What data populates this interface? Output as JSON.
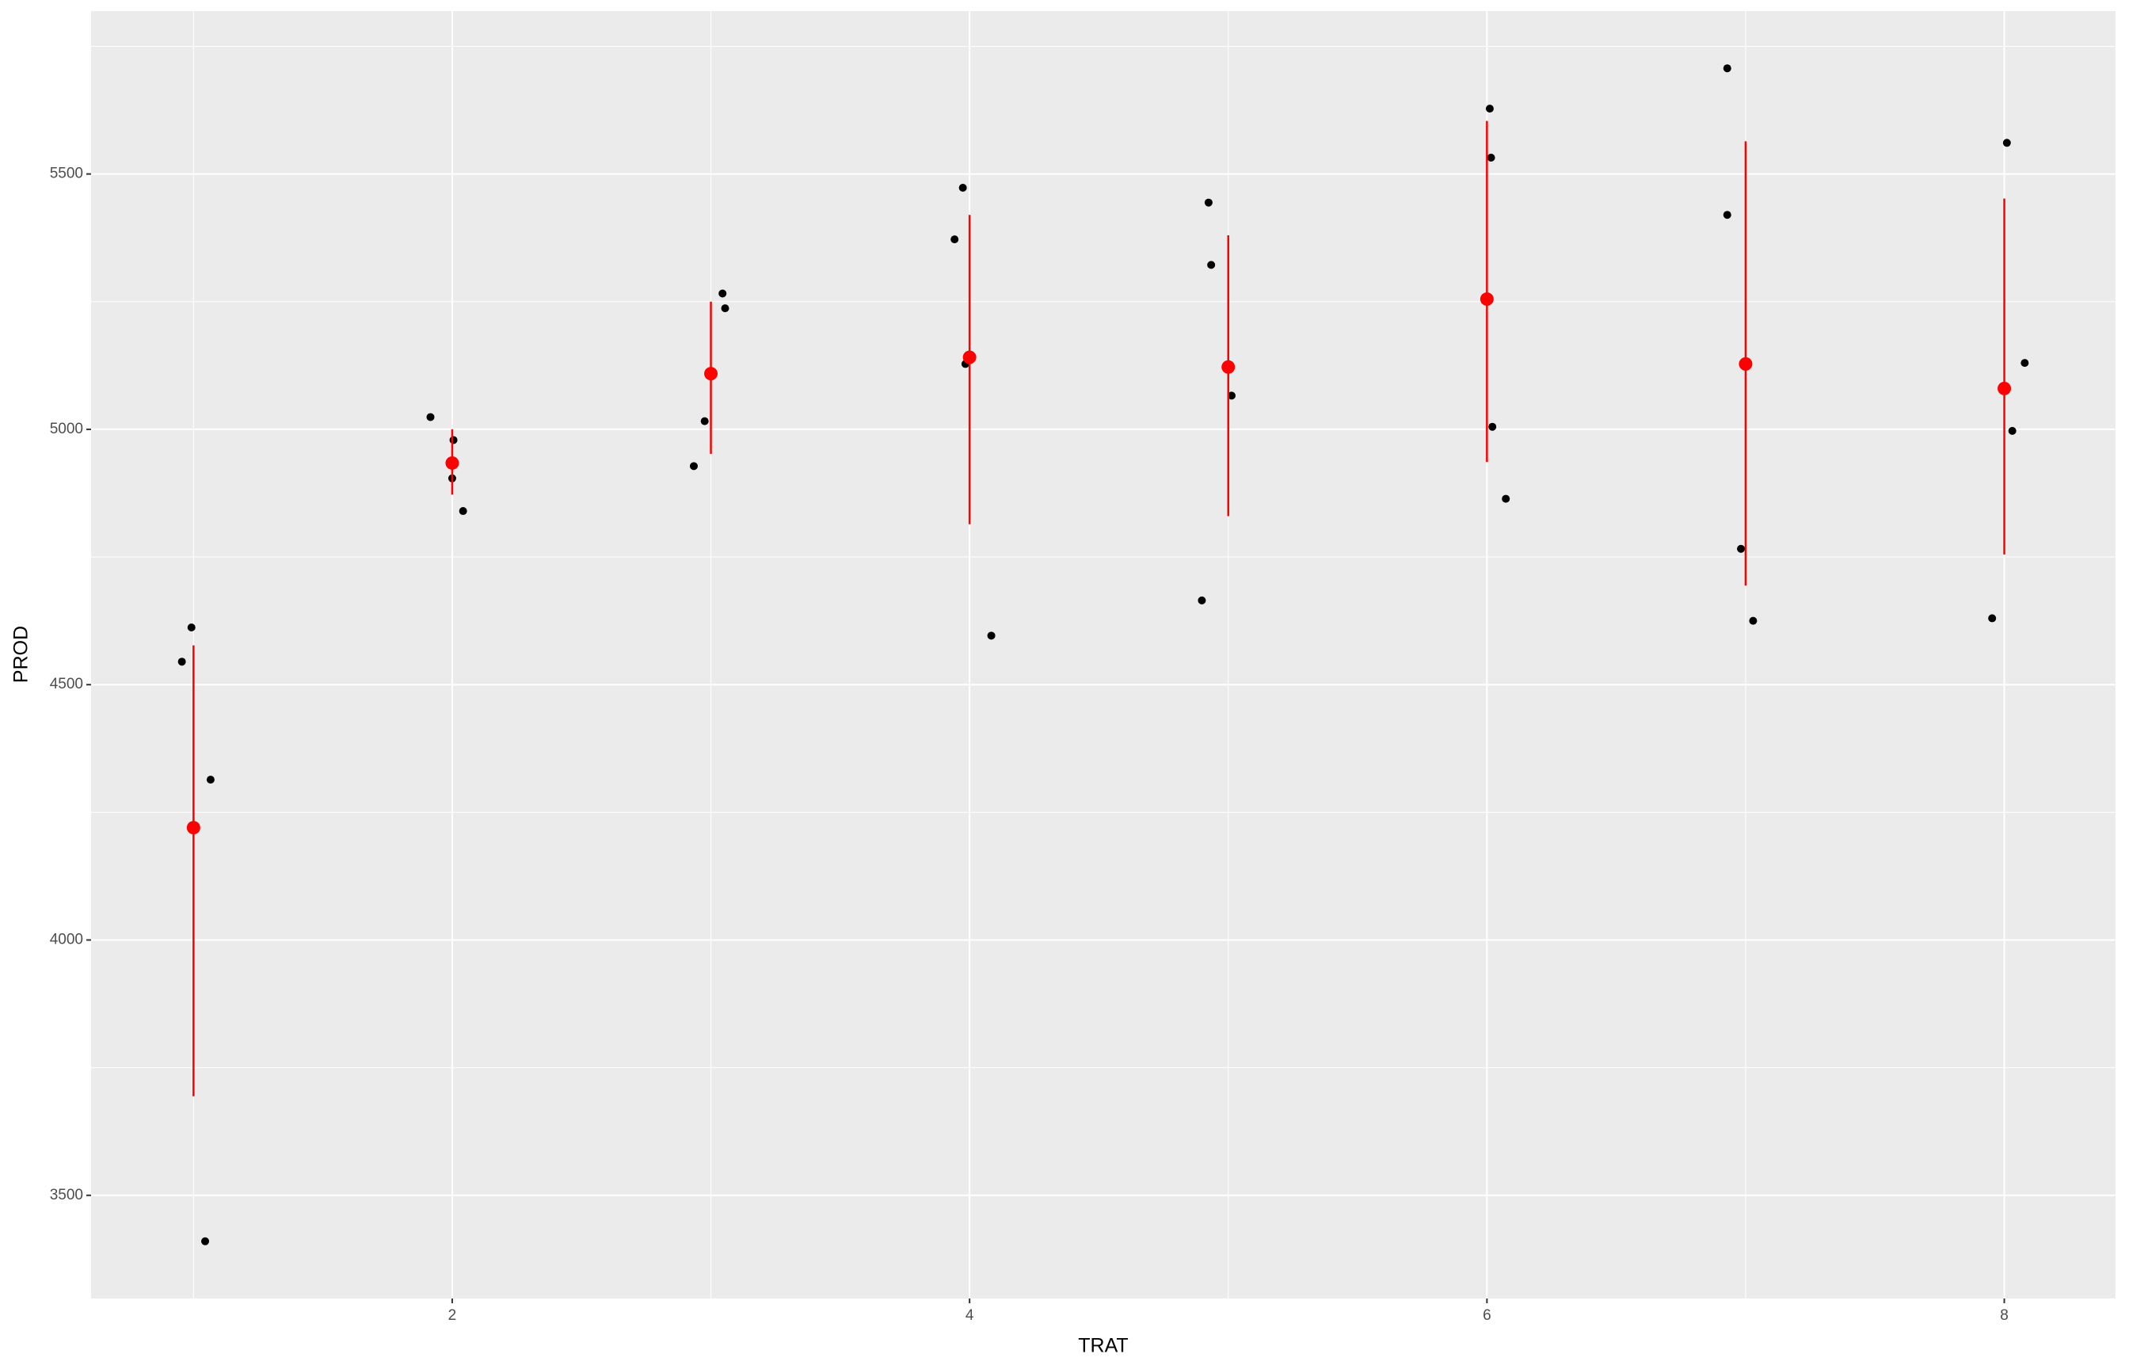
{
  "chart_data": {
    "type": "scatter",
    "x_label": "TRAT",
    "y_label": "PROD",
    "xlim": [
      0.604,
      8.43
    ],
    "ylim": [
      3298,
      5819
    ],
    "xticks": [
      2,
      4,
      6,
      8
    ],
    "yticks": [
      3500,
      4000,
      4500,
      5000,
      5500
    ],
    "xminor": [
      1,
      3,
      5,
      7
    ],
    "yminor": [
      3750,
      4250,
      4750,
      5250,
      5750
    ],
    "grid": true,
    "background": "#ebebeb",
    "series": [
      {
        "color": "#000000",
        "x": [
          0.955,
          0.992,
          1.066,
          1.045,
          1.916,
          2.005,
          2.0,
          2.042,
          2.934,
          2.976,
          3.045,
          3.055,
          3.942,
          3.974,
          3.984,
          4.084,
          4.898,
          4.924,
          4.934,
          5.013,
          6.011,
          6.016,
          6.021,
          6.073,
          6.929,
          6.929,
          6.982,
          7.029,
          7.953,
          8.01,
          8.031,
          8.079
        ],
        "values": [
          4545,
          4612,
          4314,
          3410,
          5024,
          4979,
          4904,
          4840,
          4928,
          5016,
          5266,
          5237,
          5372,
          5473,
          5128,
          4596,
          4665,
          5444,
          5322,
          5066,
          5628,
          5532,
          5005,
          4864,
          5707,
          5420,
          4766,
          4625,
          4630,
          5561,
          4997,
          5130
        ]
      },
      {
        "color": "#ff0000",
        "x": [
          1,
          2,
          3,
          4,
          5,
          6,
          7,
          8
        ],
        "values": [
          4220,
          4934,
          5109,
          5141,
          5122,
          5255,
          5128,
          5080
        ],
        "ymin": [
          3694,
          4872,
          4952,
          4814,
          4830,
          4936,
          4694,
          4755
        ],
        "ymax": [
          4577,
          5000,
          5250,
          5420,
          5380,
          5604,
          5564,
          5452
        ]
      }
    ]
  }
}
